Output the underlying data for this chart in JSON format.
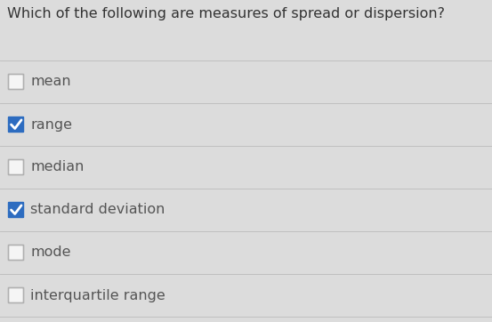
{
  "question": "Which of the following are measures of spread or dispersion?",
  "options": [
    {
      "label": "mean",
      "checked": false
    },
    {
      "label": "range",
      "checked": true
    },
    {
      "label": "median",
      "checked": false
    },
    {
      "label": "standard deviation",
      "checked": true
    },
    {
      "label": "mode",
      "checked": false
    },
    {
      "label": "interquartile range",
      "checked": false
    }
  ],
  "background_color": "#dcdcdc",
  "question_fontsize": 11.5,
  "option_fontsize": 11.5,
  "checkbox_color_checked": "#2d6cc0",
  "checkbox_color_unchecked": "#f5f5f5",
  "checkbox_border_unchecked": "#b0b0b0",
  "divider_color": "#c0c0c0",
  "text_color": "#555555",
  "question_color": "#333333",
  "fig_width": 5.53,
  "fig_height": 3.62,
  "dpi": 100
}
